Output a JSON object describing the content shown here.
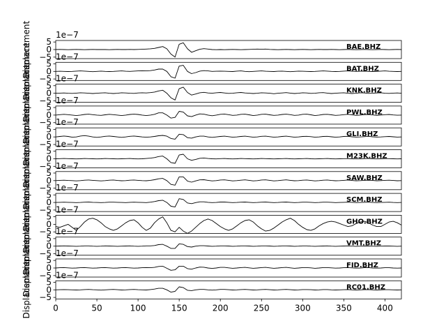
{
  "chart_data": {
    "type": "line",
    "ylabel": "Displacement",
    "y_offset_text": "1e−7",
    "xlim": [
      0,
      420
    ],
    "ylim": [
      -6,
      6
    ],
    "x_ticks": [
      0,
      50,
      100,
      150,
      200,
      250,
      300,
      350,
      400
    ],
    "y_ticks": [
      5,
      0,
      -5
    ],
    "y_tick_labels": [
      "5",
      "0",
      "−5"
    ],
    "x": [
      0,
      5,
      10,
      15,
      20,
      25,
      30,
      35,
      40,
      45,
      50,
      55,
      60,
      65,
      70,
      75,
      80,
      85,
      90,
      95,
      100,
      105,
      110,
      115,
      120,
      125,
      130,
      135,
      140,
      145,
      150,
      155,
      160,
      165,
      170,
      175,
      180,
      185,
      190,
      195,
      200,
      205,
      210,
      215,
      220,
      225,
      230,
      235,
      240,
      245,
      250,
      255,
      260,
      265,
      270,
      275,
      280,
      285,
      290,
      295,
      300,
      305,
      310,
      315,
      320,
      325,
      330,
      335,
      340,
      345,
      350,
      355,
      360,
      365,
      370,
      375,
      380,
      385,
      390,
      395,
      400,
      405,
      410,
      415,
      420
    ],
    "series": [
      {
        "name": "BAE.BHZ",
        "values": [
          0,
          0.1,
          0,
          -0.1,
          0,
          0.1,
          0,
          -0.1,
          0,
          0.1,
          0,
          0,
          0,
          -0.1,
          0,
          0.1,
          0,
          0,
          0.1,
          0,
          0.1,
          0.2,
          0.3,
          0.5,
          0.8,
          1.4,
          2,
          0.5,
          -3,
          -5,
          3.5,
          4.5,
          0.5,
          -1.8,
          -0.8,
          0.2,
          0.6,
          0.3,
          0,
          -0.1,
          0,
          -0.1,
          0,
          0.1,
          0,
          -0.1,
          0,
          0.1,
          0.2,
          0.3,
          0.2,
          0.3,
          0.1,
          0,
          -0.1,
          0,
          0.1,
          0,
          -0.1,
          0,
          0.1,
          0,
          -0.1,
          0,
          0.1,
          0,
          0,
          0.1,
          0,
          -0.1,
          0,
          0.1,
          0,
          -0.1,
          0,
          0.1,
          0,
          -0.1,
          0,
          0.1,
          0,
          -0.1,
          0,
          0.1,
          0
        ]
      },
      {
        "name": "BAT.BHZ",
        "values": [
          0,
          0.1,
          0,
          -0.1,
          0,
          0.2,
          0.3,
          0.2,
          0,
          -0.2,
          0,
          0.2,
          0,
          -0.1,
          0,
          0.2,
          0.3,
          0.1,
          0,
          0.2,
          0.3,
          0.4,
          0.3,
          0.5,
          0.9,
          1.5,
          1.5,
          0,
          -3.5,
          -4.5,
          3.5,
          4,
          0,
          -1.5,
          -0.8,
          0.2,
          0.5,
          0.3,
          0,
          0.1,
          0.2,
          0.1,
          0,
          -0.1,
          0.2,
          0.3,
          0,
          -0.2,
          0,
          0.2,
          0.3,
          0.1,
          0,
          -0.1,
          0.1,
          0.2,
          0,
          -0.2,
          0,
          0.2,
          0.1,
          0,
          -0.1,
          0,
          0.2,
          0.3,
          0.2,
          0,
          -0.1,
          0,
          0.2,
          0.3,
          0.1,
          0,
          0.1,
          0.2,
          0,
          -0.1,
          0,
          0.2,
          0.3,
          0.1,
          0,
          -0.1,
          0
        ]
      },
      {
        "name": "KNK.BHZ",
        "values": [
          0,
          0.1,
          0.2,
          0,
          -0.1,
          0.1,
          0.3,
          0.2,
          0,
          -0.2,
          0,
          0.2,
          0.3,
          0,
          -0.2,
          0,
          0.3,
          0.2,
          0,
          -0.1,
          0.2,
          0.3,
          0.2,
          0.4,
          0.8,
          1.5,
          2,
          0,
          -3,
          -4.5,
          3,
          4,
          0.5,
          -1.2,
          -0.5,
          0.3,
          0.6,
          0.2,
          0,
          0.3,
          0.5,
          0.2,
          -0.1,
          0,
          0.3,
          0.5,
          0.2,
          0,
          -0.2,
          0,
          0.3,
          0.2,
          0,
          -0.3,
          0,
          0.2,
          0.4,
          0.1,
          -0.2,
          0,
          0.3,
          0.2,
          -0.1,
          0,
          0.3,
          0.4,
          0.1,
          -0.2,
          0,
          0.2,
          0.3,
          0,
          -0.2,
          0,
          0.3,
          0.2,
          -0.1,
          0,
          0.2,
          0.3,
          0,
          -0.1,
          0.1,
          0.2,
          0
        ]
      },
      {
        "name": "PWL.BHZ",
        "values": [
          0,
          0.3,
          0.5,
          0.3,
          0,
          -0.3,
          0,
          0.4,
          0.6,
          0.3,
          0,
          -0.2,
          0.2,
          0.5,
          0.3,
          0,
          -0.3,
          0,
          0.4,
          0.6,
          0.4,
          0,
          -0.3,
          0,
          0.5,
          1.5,
          1.5,
          0,
          -2,
          -1.5,
          2.5,
          2,
          -0.5,
          -1,
          0,
          0.8,
          0.6,
          0,
          -0.4,
          0,
          0.5,
          0.7,
          0.3,
          -0.2,
          0,
          0.5,
          0.6,
          0.2,
          -0.3,
          0,
          0.5,
          0.6,
          0.2,
          -0.2,
          0,
          0.4,
          0.6,
          0.3,
          -0.2,
          0,
          0.5,
          0.6,
          0.2,
          -0.3,
          0,
          0.4,
          0.5,
          0.2,
          -0.2,
          0,
          0.3,
          0.5,
          0.2,
          -0.2,
          0,
          0.3,
          0.4,
          0.1,
          -0.2,
          0,
          0.3,
          0.4,
          0.1,
          -0.1,
          0
        ]
      },
      {
        "name": "GLI.BHZ",
        "values": [
          0,
          0.3,
          0.6,
          0.3,
          -0.2,
          0,
          0.6,
          0.9,
          0.5,
          0,
          -0.3,
          0,
          0.4,
          0.6,
          0.3,
          0,
          -0.3,
          0,
          0.4,
          0.6,
          0.3,
          0,
          -0.2,
          0,
          0.3,
          0.8,
          1,
          0.5,
          -1,
          -1.5,
          1.8,
          1.5,
          -0.5,
          -0.8,
          0,
          0.5,
          0.5,
          0,
          -0.3,
          0,
          0.3,
          0.5,
          0.2,
          -0.2,
          0,
          0.3,
          0.5,
          0.2,
          -0.2,
          0,
          0.4,
          0.5,
          0.2,
          -0.2,
          0,
          0.3,
          0.5,
          0.2,
          -0.2,
          0,
          0.3,
          0.4,
          0.2,
          -0.2,
          0,
          0.3,
          0.4,
          0.1,
          -0.2,
          0,
          0.3,
          0.4,
          0.1,
          -0.1,
          0,
          0.2,
          0.4,
          0.1,
          -0.1,
          0,
          0.2,
          0.3,
          0.1,
          -0.1,
          0
        ]
      },
      {
        "name": "M23K.BHZ",
        "values": [
          0,
          0.1,
          0.2,
          0.1,
          0,
          -0.1,
          0,
          0.2,
          0.1,
          0,
          -0.1,
          0,
          0.2,
          0.1,
          0,
          -0.1,
          0,
          0.1,
          0.2,
          0,
          -0.1,
          0,
          0.2,
          0.4,
          0.8,
          1.5,
          1.8,
          0,
          -2.5,
          -3,
          2.5,
          3,
          0,
          -1,
          -0.4,
          0.3,
          0.5,
          0.2,
          0,
          -0.1,
          0.1,
          0.2,
          0,
          -0.1,
          0,
          0.2,
          0.1,
          0,
          -0.1,
          0,
          0.2,
          0.1,
          0,
          -0.1,
          0,
          0.1,
          0.2,
          0,
          -0.1,
          0,
          0.1,
          0.2,
          0,
          -0.1,
          0,
          0.1,
          0.2,
          0,
          -0.1,
          0,
          0.1,
          0.1,
          0,
          -0.1,
          0,
          0.1,
          0.2,
          0,
          -0.1,
          0,
          0.1,
          0.1,
          0,
          -0.1,
          0
        ]
      },
      {
        "name": "SAW.BHZ",
        "values": [
          0,
          0.2,
          0.3,
          0.1,
          0,
          -0.2,
          0,
          0.3,
          0.4,
          0.2,
          0,
          -0.2,
          0,
          0.3,
          0.4,
          0.1,
          -0.1,
          0,
          0.3,
          0.4,
          0.2,
          0,
          -0.1,
          0.2,
          0.6,
          1.2,
          1.5,
          0,
          -2.5,
          -3,
          2.5,
          2.5,
          -0.3,
          -1,
          -0.2,
          0.5,
          0.6,
          0.2,
          -0.2,
          0,
          0.4,
          0.5,
          0.2,
          -0.2,
          0,
          0.3,
          0.5,
          0.2,
          -0.2,
          0,
          0.4,
          0.5,
          0.2,
          -0.2,
          0,
          0.3,
          0.5,
          0.2,
          -0.1,
          0,
          0.3,
          0.4,
          0.1,
          -0.2,
          0,
          0.3,
          0.4,
          0.1,
          -0.1,
          0,
          0.2,
          0.4,
          0.1,
          -0.1,
          0,
          0.2,
          0.3,
          0.1,
          -0.1,
          0,
          0.2,
          0.3,
          0.1,
          -0.1,
          0
        ]
      },
      {
        "name": "SCM.BHZ",
        "values": [
          0,
          0.1,
          0.2,
          0.1,
          0,
          -0.1,
          0,
          0.2,
          0.3,
          0.1,
          0,
          -0.1,
          0,
          0.2,
          0.2,
          0.1,
          0,
          -0.1,
          0.1,
          0.2,
          0.1,
          0,
          -0.1,
          0.2,
          0.6,
          1.2,
          1.5,
          0,
          -2.5,
          -3,
          2.5,
          2,
          -0.3,
          -0.8,
          -0.1,
          0.4,
          0.4,
          0.1,
          -0.1,
          0,
          0.3,
          0.3,
          0.1,
          -0.1,
          0,
          0.2,
          0.3,
          0.1,
          -0.1,
          0,
          0.2,
          0.3,
          0.1,
          -0.1,
          0,
          0.2,
          0.3,
          0.1,
          -0.1,
          0,
          0.2,
          0.2,
          0.1,
          -0.1,
          0,
          0.2,
          0.2,
          0.1,
          -0.1,
          0,
          0.1,
          0.2,
          0.1,
          -0.1,
          0,
          0.1,
          0.2,
          0,
          -0.1,
          0,
          0.1,
          0.2,
          0,
          -0.1,
          0
        ]
      },
      {
        "name": "GHO.BHZ",
        "values": [
          -1.5,
          -2,
          -1,
          0,
          -2,
          -4,
          -1.5,
          1.5,
          3.5,
          4,
          3,
          1,
          -1.5,
          -3,
          -4,
          -3,
          -1,
          1,
          2.5,
          3,
          1,
          -2,
          -4,
          -2.5,
          1,
          3.5,
          5,
          1,
          -4,
          -5,
          -2,
          -4.5,
          -6,
          -4.5,
          -2,
          0.5,
          2.5,
          3.5,
          2.5,
          0.5,
          -1.5,
          -3,
          -4,
          -3,
          -1,
          1,
          2.5,
          3,
          1.5,
          -1,
          -3,
          -4.5,
          -4,
          -2.5,
          -0.5,
          1.5,
          3,
          4,
          2.5,
          0,
          -2,
          -3.5,
          -4,
          -3,
          -1,
          0.5,
          1.5,
          2,
          1.5,
          0.5,
          -0.5,
          -1.5,
          -1,
          0.5,
          1.5,
          2,
          1,
          -0.5,
          -1.5,
          -1.5,
          0,
          1.5,
          2,
          1,
          -0.5
        ]
      },
      {
        "name": "VMT.BHZ",
        "values": [
          0,
          0.1,
          0.2,
          0.1,
          0,
          -0.1,
          0,
          0.2,
          0.2,
          0,
          -0.1,
          0,
          0.2,
          0.1,
          0,
          -0.1,
          0,
          0.1,
          0.2,
          0,
          -0.1,
          0,
          0.2,
          0.2,
          0.4,
          1,
          1.2,
          0,
          -1.5,
          -1.5,
          1.5,
          1.2,
          -0.3,
          -0.6,
          0,
          0.3,
          0.3,
          0.1,
          -0.1,
          0,
          0.2,
          0.2,
          0.1,
          -0.1,
          0,
          0.2,
          0.2,
          0.1,
          -0.1,
          0,
          0.2,
          0.2,
          0.1,
          -0.1,
          0,
          0.2,
          0.2,
          0.1,
          -0.1,
          0,
          0.2,
          0.2,
          0,
          -0.1,
          0,
          0.1,
          0.2,
          0,
          -0.1,
          0,
          0.1,
          0.2,
          0,
          -0.1,
          0,
          0.1,
          0.1,
          0,
          -0.1,
          0,
          0.1,
          0.1,
          0,
          -0.1,
          0
        ]
      },
      {
        "name": "FID.BHZ",
        "values": [
          0,
          0.2,
          0.3,
          0.1,
          -0.1,
          0,
          0.2,
          0.3,
          0.1,
          -0.1,
          0,
          0.2,
          0.3,
          0.1,
          -0.1,
          0,
          0.2,
          0.3,
          0.1,
          -0.1,
          0,
          0.2,
          0.3,
          0.2,
          0.4,
          1,
          1.2,
          -0.2,
          -1.5,
          -1.2,
          1.2,
          1.2,
          -0.4,
          -0.8,
          0,
          0.6,
          0.5,
          0,
          -0.3,
          0,
          0.4,
          0.4,
          0.1,
          -0.2,
          0,
          0.3,
          0.4,
          0.1,
          -0.2,
          0,
          0.3,
          0.4,
          0.1,
          -0.2,
          0,
          0.3,
          0.4,
          0.1,
          -0.2,
          0,
          0.3,
          0.3,
          0.1,
          -0.2,
          0,
          0.3,
          0.3,
          0.1,
          -0.1,
          0,
          0.2,
          0.3,
          0.1,
          -0.1,
          0,
          0.2,
          0.3,
          0,
          -0.1,
          0,
          0.2,
          0.2,
          0,
          -0.1,
          0
        ]
      },
      {
        "name": "RC01.BHZ",
        "values": [
          0,
          0.1,
          0.2,
          0.1,
          0,
          -0.1,
          0,
          0.2,
          0.3,
          0.1,
          0,
          -0.2,
          0,
          0.2,
          0.3,
          0.1,
          -0.1,
          0,
          0.2,
          0.3,
          0.1,
          0,
          -0.1,
          0.2,
          0.5,
          1,
          1,
          0,
          -1.5,
          -1,
          2,
          1.5,
          -0.3,
          -0.5,
          0,
          0.3,
          0.3,
          0,
          -0.2,
          0,
          0.3,
          0.3,
          0.1,
          -0.1,
          0,
          0.2,
          0.3,
          0.1,
          -0.1,
          0,
          0.2,
          0.3,
          0.1,
          -0.1,
          0,
          0.2,
          0.3,
          0.1,
          -0.1,
          0,
          0.2,
          0.2,
          0.1,
          -0.1,
          0,
          0.2,
          0.2,
          0,
          -0.1,
          0,
          0.1,
          0.2,
          0,
          -0.1,
          0,
          0.1,
          0.2,
          0,
          -0.1,
          0,
          0.1,
          0.1,
          0,
          -0.1,
          0
        ]
      }
    ]
  }
}
